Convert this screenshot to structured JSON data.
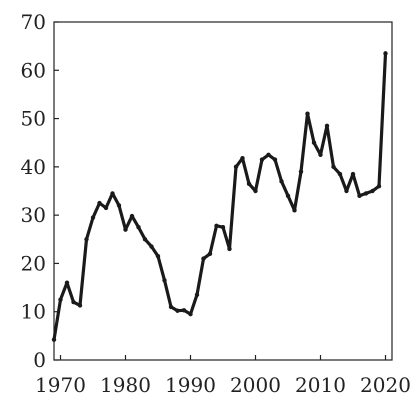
{
  "chart_data": {
    "type": "line",
    "title": "",
    "xlabel": "",
    "ylabel": "",
    "xlim": [
      1969,
      2021
    ],
    "ylim": [
      0,
      70
    ],
    "x_ticks": [
      1970,
      1980,
      1990,
      2000,
      2010,
      2020
    ],
    "y_ticks": [
      0,
      10,
      20,
      30,
      40,
      50,
      60,
      70
    ],
    "x_tick_labels": [
      "1970",
      "1980",
      "1990",
      "2000",
      "2010",
      "2020"
    ],
    "y_tick_labels": [
      "0",
      "10",
      "20",
      "30",
      "40",
      "50",
      "60",
      "70"
    ],
    "grid": false,
    "legend": "none",
    "line_color": "#1a1a1a",
    "series": [
      {
        "x": [
          1969,
          1970,
          1971,
          1972,
          1973,
          1974,
          1975,
          1976,
          1977,
          1978,
          1979,
          1980,
          1981,
          1982,
          1983,
          1984,
          1985,
          1986,
          1987,
          1988,
          1989,
          1990,
          1991,
          1992,
          1993,
          1994,
          1995,
          1996,
          1997,
          1998,
          1999,
          2000,
          2001,
          2002,
          2003,
          2004,
          2005,
          2006,
          2007,
          2008,
          2009,
          2010,
          2011,
          2012,
          2013,
          2014,
          2015,
          2016,
          2017,
          2018,
          2019,
          2020
        ],
        "values": [
          4.2,
          12.5,
          16.0,
          12.0,
          11.3,
          25.0,
          29.5,
          32.5,
          31.5,
          34.5,
          32.0,
          27.0,
          29.8,
          27.5,
          25.0,
          23.5,
          21.5,
          16.5,
          11.0,
          10.2,
          10.3,
          9.5,
          13.5,
          21.0,
          22.0,
          27.8,
          27.5,
          23.0,
          40.0,
          41.8,
          36.5,
          35.0,
          41.5,
          42.5,
          41.5,
          37.0,
          34.0,
          31.0,
          39.0,
          51.0,
          45.0,
          42.5,
          48.5,
          40.0,
          38.5,
          35.0,
          38.5,
          34.0,
          34.5,
          35.0,
          36.0,
          63.5
        ]
      }
    ]
  }
}
